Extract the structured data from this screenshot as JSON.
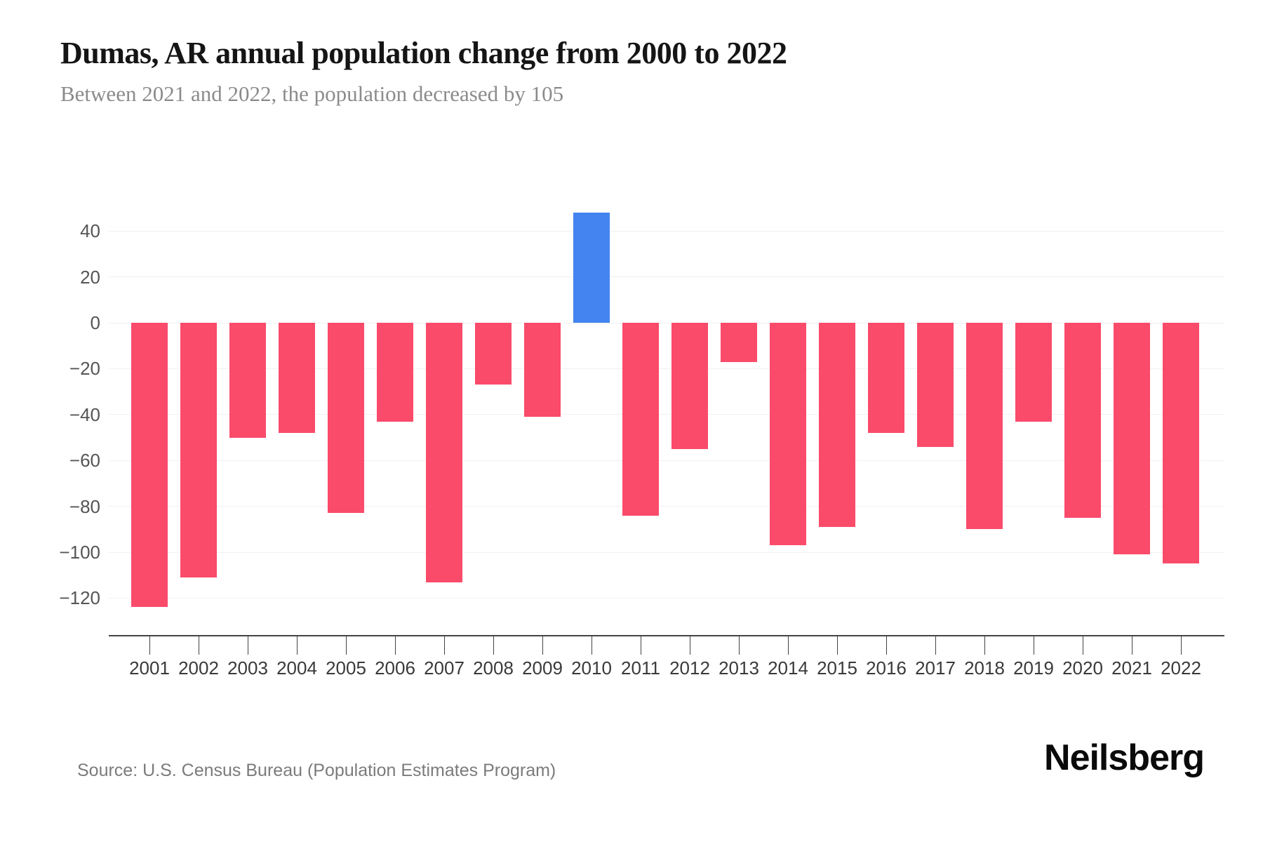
{
  "header": {
    "title": "Dumas, AR annual population change from 2000 to 2022",
    "subtitle": "Between 2021 and 2022, the population decreased by 105"
  },
  "footer": {
    "source": "Source: U.S. Census Bureau (Population Estimates Program)",
    "brand": "Neilsberg"
  },
  "colors": {
    "bar_negative": "#fa4b6b",
    "bar_positive": "#4384f0",
    "grid": "#f0f0f3",
    "axis": "#444444"
  },
  "chart_data": {
    "type": "bar",
    "title": "Dumas, AR annual population change from 2000 to 2022",
    "xlabel": "",
    "ylabel": "",
    "categories": [
      "2001",
      "2002",
      "2003",
      "2004",
      "2005",
      "2006",
      "2007",
      "2008",
      "2009",
      "2010",
      "2011",
      "2012",
      "2013",
      "2014",
      "2015",
      "2016",
      "2017",
      "2018",
      "2019",
      "2020",
      "2021",
      "2022"
    ],
    "values": [
      -124,
      -111,
      -50,
      -48,
      -83,
      -43,
      -113,
      -27,
      -41,
      48,
      -84,
      -55,
      -17,
      -97,
      -89,
      -48,
      -54,
      -90,
      -43,
      -85,
      -101,
      -105
    ],
    "yticks": [
      40,
      20,
      0,
      -20,
      -40,
      -60,
      -80,
      -100,
      -120
    ],
    "ylim": [
      -136,
      64
    ],
    "grid": true,
    "legend": false,
    "negative_color_note": "pink-red bars for population decrease",
    "positive_color_note": "blue bar for population increase (2010)"
  }
}
